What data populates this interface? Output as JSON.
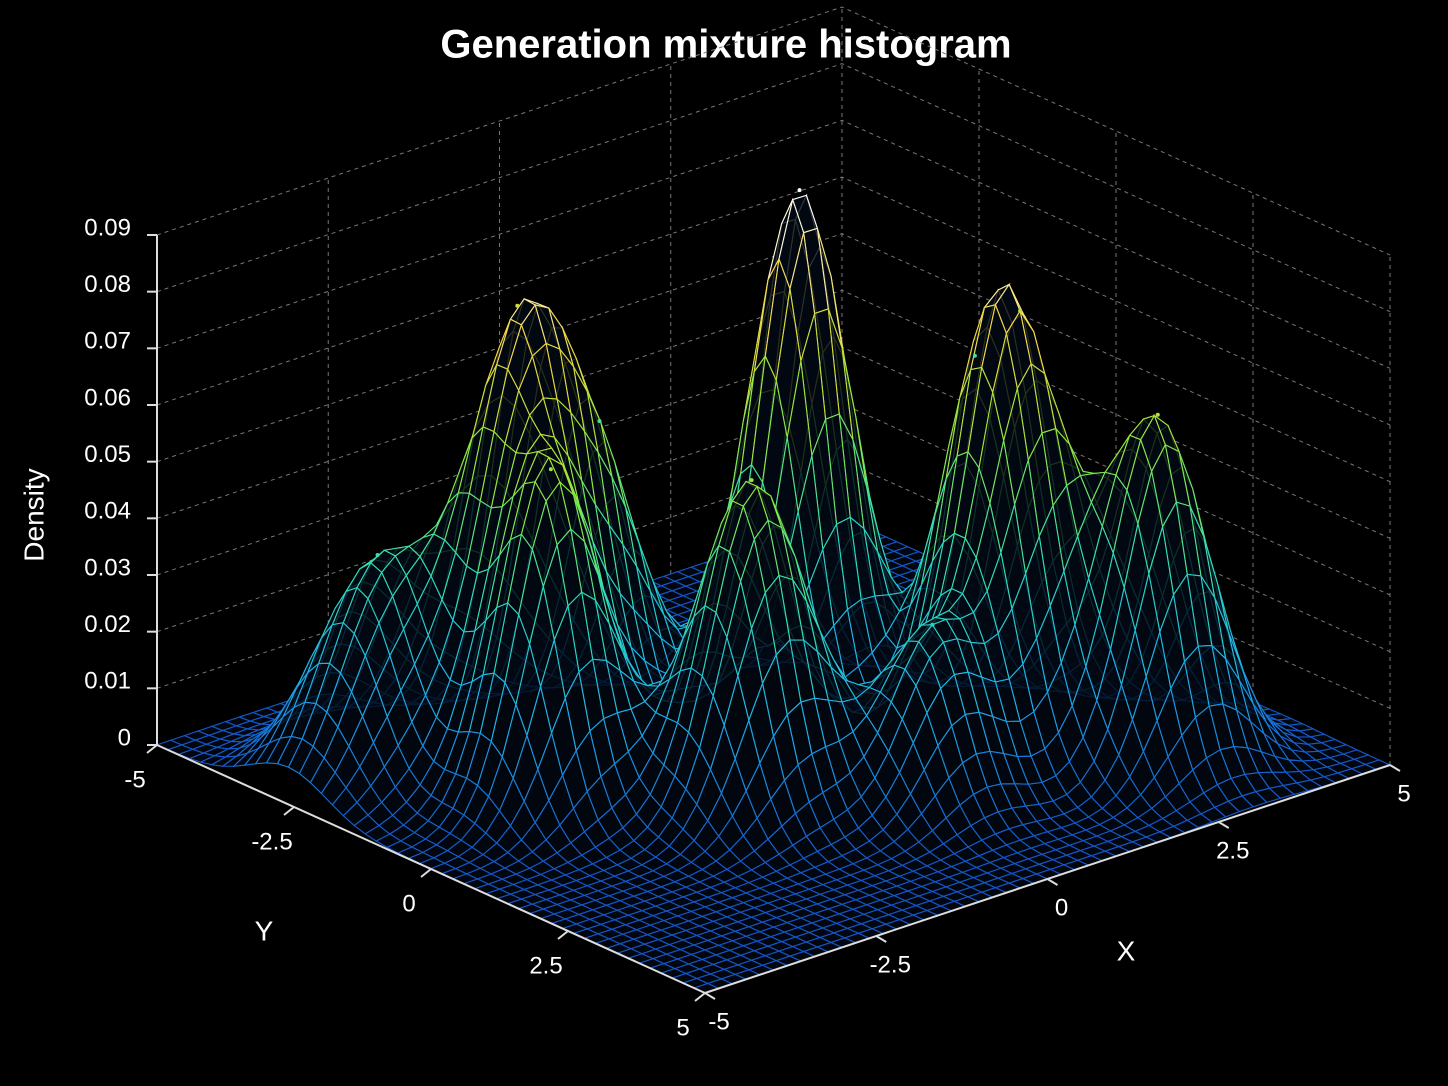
{
  "chart_data": {
    "type": "surface",
    "title": "Generation mixture histogram",
    "x_label": "X",
    "y_label": "Y",
    "z_label": "Density",
    "xlim": [
      -5,
      5
    ],
    "ylim": [
      -5,
      5
    ],
    "zlim": [
      0,
      0.09
    ],
    "xticks": [
      -5,
      -2.5,
      0,
      2.5,
      5
    ],
    "yticks": [
      -5,
      -2.5,
      0,
      2.5,
      5
    ],
    "zticks": [
      0,
      0.01,
      0.02,
      0.03,
      0.04,
      0.05,
      0.06,
      0.07,
      0.08,
      0.09
    ],
    "grid": true,
    "colormap": [
      "#1556c8",
      "#1fb0ec",
      "#2fe0b4",
      "#8fe83c",
      "#f5d43a",
      "#ffffff"
    ],
    "peaks": [
      {
        "x": 0.7,
        "y": -0.4,
        "height": 0.095,
        "spread": 0.6
      },
      {
        "x": -2.3,
        "y": -1.8,
        "height": 0.065,
        "spread": 0.6
      },
      {
        "x": -2.85,
        "y": -0.5,
        "height": 0.055,
        "spread": 0.6
      },
      {
        "x": -3.7,
        "y": -2.6,
        "height": 0.037,
        "spread": 0.7
      },
      {
        "x": -1.3,
        "y": -1.55,
        "height": 0.042,
        "spread": 0.6
      },
      {
        "x": -1.2,
        "y": 1.1,
        "height": 0.058,
        "spread": 0.65
      },
      {
        "x": 0.4,
        "y": 2.4,
        "height": 0.03,
        "spread": 0.6
      },
      {
        "x": 2.0,
        "y": 2.0,
        "height": 0.06,
        "spread": 0.6
      },
      {
        "x": 3.05,
        "y": 3.2,
        "height": 0.06,
        "spread": 0.6
      },
      {
        "x": 1.9,
        "y": 1.3,
        "height": 0.038,
        "spread": 0.55
      }
    ]
  }
}
